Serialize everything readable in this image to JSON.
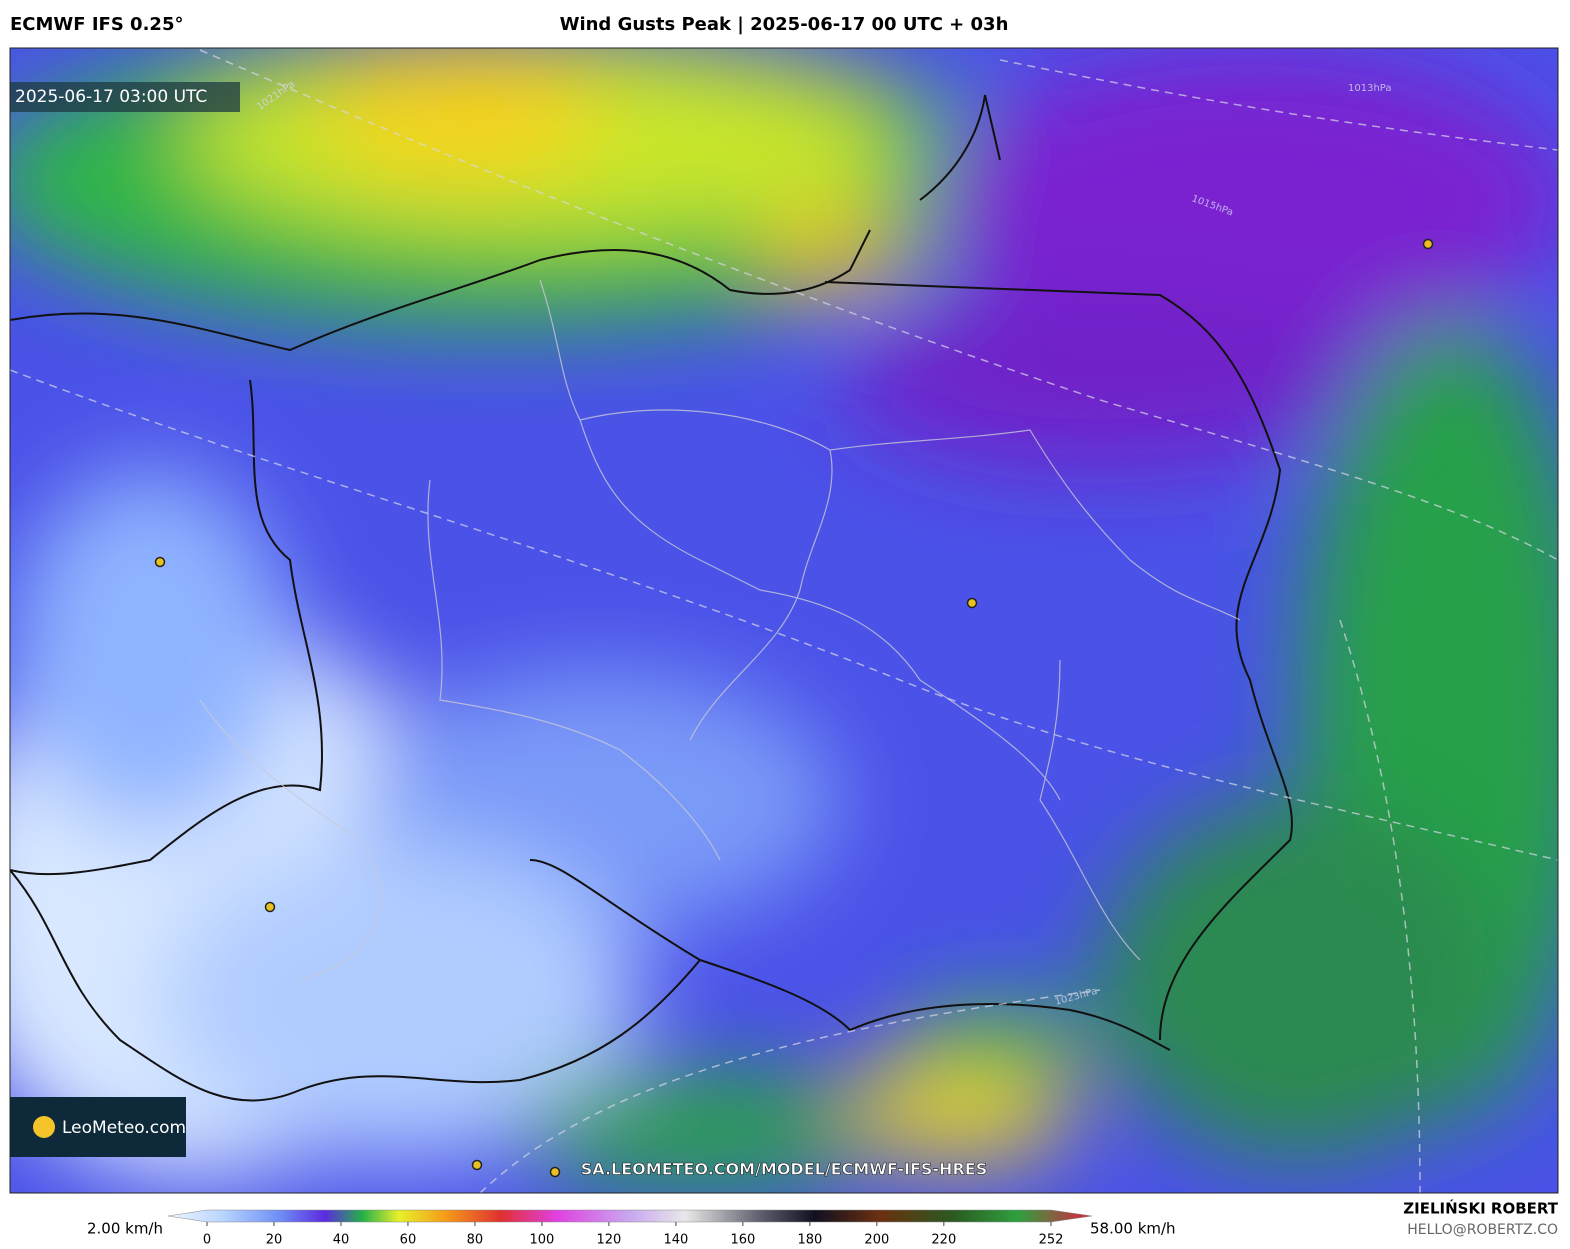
{
  "header": {
    "model": "ECMWF IFS 0.25°",
    "title": "Wind Gusts Peak | 2025-06-17 00 UTC + 03h"
  },
  "map": {
    "valid_time": "2025-06-17 03:00 UTC",
    "logo": "LeoMeteo.com",
    "source_url": "SA.LEOMETEO.COM/MODEL/ECMWF-IFS-HRES",
    "isobar_labels": [
      "1021hPa",
      "1013hPa",
      "1015hPa",
      "1023hPa"
    ]
  },
  "colorbar": {
    "min_label": "2.00 km/h",
    "max_label": "58.00 km/h",
    "ticks": [
      0,
      20,
      40,
      60,
      80,
      100,
      120,
      140,
      160,
      180,
      200,
      220,
      252
    ]
  },
  "footer": {
    "author": "ZIELIŃSKI ROBERT",
    "email": "HELLO@ROBERTZ.CO"
  }
}
